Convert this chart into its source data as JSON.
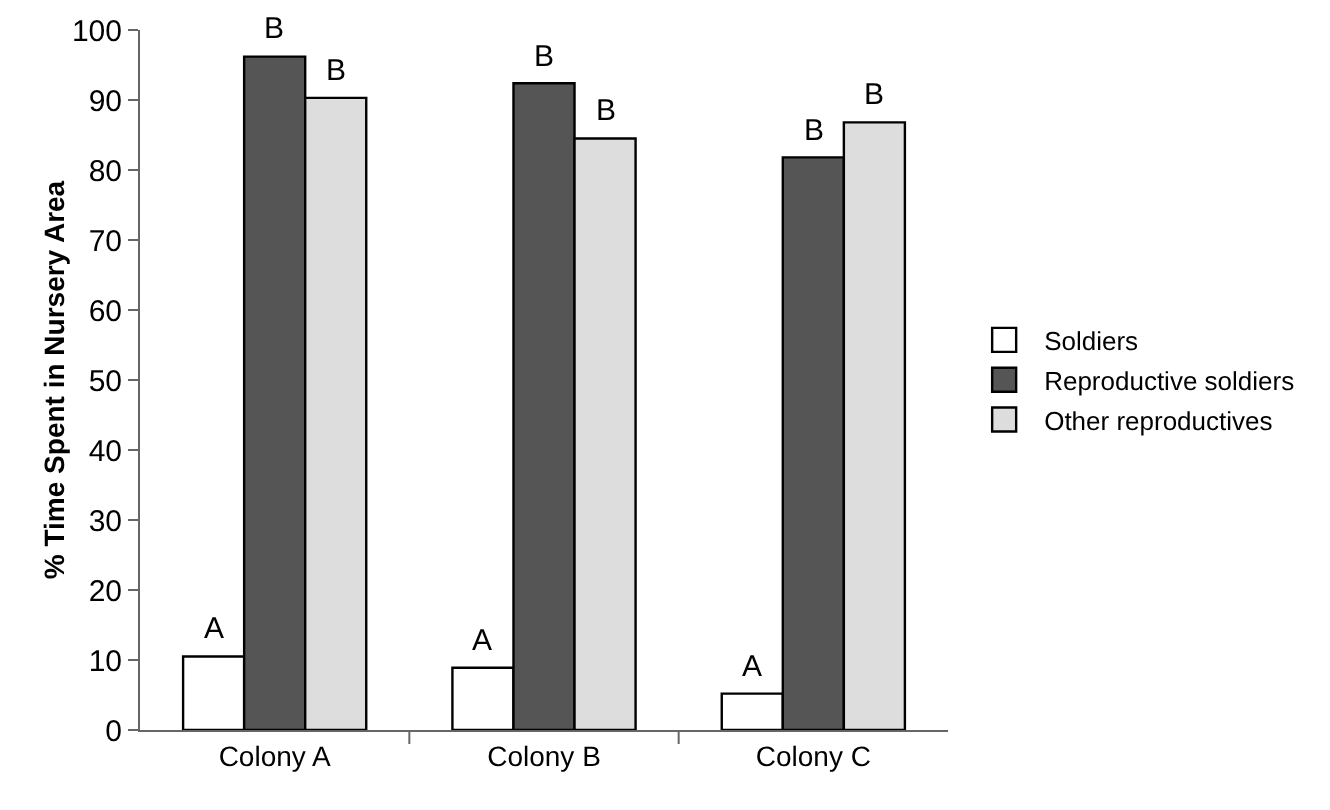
{
  "chart_data": {
    "type": "bar",
    "ylabel": "% Time Spent in Nursery Area",
    "categories": [
      "Colony A",
      "Colony B",
      "Colony C"
    ],
    "series": [
      {
        "name": "Soldiers",
        "color": "#ffffff",
        "values": [
          10.5,
          8.9,
          5.2
        ]
      },
      {
        "name": "Reproductive soldiers",
        "color": "#555555",
        "values": [
          96.2,
          92.4,
          81.8
        ]
      },
      {
        "name": "Other reproductives",
        "color": "#dddddd",
        "values": [
          90.3,
          84.5,
          86.8
        ]
      }
    ],
    "ylim": [
      0,
      100
    ],
    "yticks": [
      0,
      10,
      20,
      30,
      40,
      50,
      60,
      70,
      80,
      90,
      100
    ],
    "grid": false,
    "legend": "right",
    "annotations": [
      "A",
      "B",
      "B",
      "A",
      "B",
      "B",
      "A",
      "B",
      "B"
    ]
  }
}
